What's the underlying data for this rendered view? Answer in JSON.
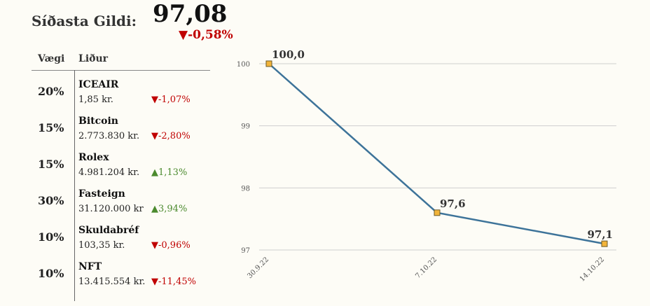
{
  "header": {
    "label": "Síðasta Gildi:",
    "value": "97,08",
    "change": "▼-0,58%",
    "change_color": "#c00000"
  },
  "table": {
    "col_weight": "Vægi",
    "col_item": "Liður",
    "rows": [
      {
        "weight": "20%",
        "name": "ICEAIR",
        "price": "1,85 kr.",
        "change": "▼-1,07%",
        "dir": "down"
      },
      {
        "weight": "15%",
        "name": "Bitcoin",
        "price": "2.773.830 kr.",
        "change": "▼-2,80%",
        "dir": "down"
      },
      {
        "weight": "15%",
        "name": "Rolex",
        "price": "4.981.204 kr.",
        "change": "▲1,13%",
        "dir": "up"
      },
      {
        "weight": "30%",
        "name": "Fasteign",
        "price": "31.120.000 kr",
        "change": "▲3,94%",
        "dir": "up"
      },
      {
        "weight": "10%",
        "name": "Skuldabréf",
        "price": "103,35 kr.",
        "change": "▼-0,96%",
        "dir": "down"
      },
      {
        "weight": "10%",
        "name": "NFT",
        "price": "13.415.554 kr.",
        "change": "▼-11,45%",
        "dir": "down"
      }
    ]
  },
  "colors": {
    "down": "#c00000",
    "up": "#4b8a2e",
    "line": "#3d7399",
    "marker": "#f2b43a"
  },
  "chart_data": {
    "type": "line",
    "categories": [
      "30.9.22",
      "7.10.22",
      "14.10.22"
    ],
    "series": [
      {
        "values": [
          100.0,
          97.6,
          97.1
        ],
        "labels": [
          "100,0",
          "97,6",
          "97,1"
        ]
      }
    ],
    "yticks": [
      100,
      99,
      98,
      97
    ],
    "ylim": [
      97,
      100
    ],
    "grid": true,
    "legend": "none"
  }
}
